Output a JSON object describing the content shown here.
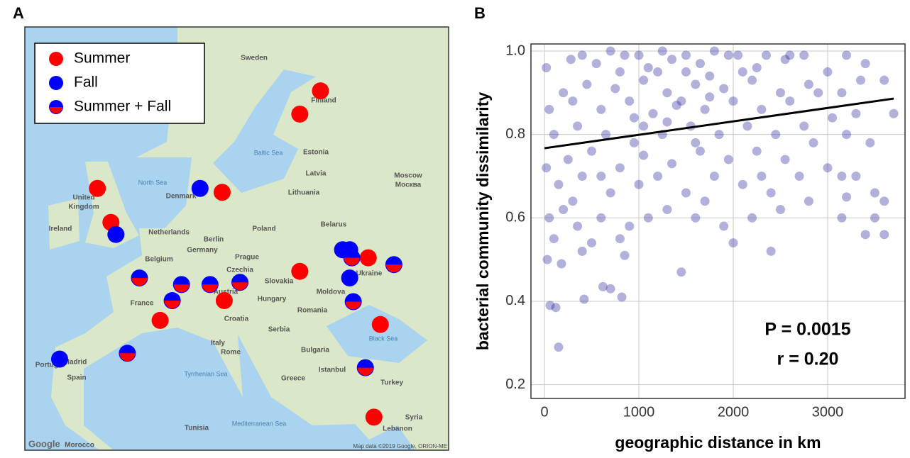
{
  "panel_labels": [
    "A",
    "B"
  ],
  "map": {
    "type": "map",
    "legend": [
      "Summer",
      "Fall",
      "Summer + Fall"
    ],
    "series": [
      {
        "name": "Summer",
        "color": "#ff0000",
        "lat": [
          62.5,
          61.0,
          55.4,
          55.7,
          53.0,
          50.0,
          48.8,
          46.1,
          44.2,
          43.8,
          34.0
        ],
        "lon": [
          27.7,
          24.8,
          13.9,
          -3.6,
          -1.7,
          34.4,
          24.8,
          14.2,
          5.2,
          36.1,
          35.2
        ]
      },
      {
        "name": "Fall",
        "color": "#0000ff",
        "lat": [
          55.7,
          52.0,
          50.7,
          50.7,
          48.2,
          40.3
        ],
        "lon": [
          10.8,
          -1.0,
          30.8,
          31.8,
          31.8,
          -8.9
        ]
      },
      {
        "name": "Summer + Fall",
        "color": "#0000ff",
        "color2": "#ff0000",
        "lat": [
          50.0,
          49.4,
          48.2,
          47.6,
          47.6,
          47.8,
          46.1,
          46.0,
          40.9,
          39.4
        ],
        "lon": [
          32.1,
          38.0,
          2.3,
          8.2,
          12.2,
          16.4,
          6.9,
          32.3,
          0.6,
          34.0
        ]
      }
    ],
    "labels": [
      "Sweden",
      "Finland",
      "Estonia",
      "Latvia",
      "Lithuania",
      "Moscow",
      "Москва",
      "North Sea",
      "Baltic Sea",
      "Denmark",
      "United",
      "Kingdom",
      "Ireland",
      "Netherlands",
      "Berlin",
      "Poland",
      "Belarus",
      "Germany",
      "Belgium",
      "Prague",
      "Czechia",
      "Slovakia",
      "Austria",
      "Hungary",
      "Moldova",
      "Ukraine",
      "France",
      "Romania",
      "Croatia",
      "Serbia",
      "Black Sea",
      "Italy",
      "Bulgaria",
      "Rome",
      "Madrid",
      "Spain",
      "Portugal",
      "Tyrrhenian Sea",
      "Greece",
      "Istanbul",
      "Turkey",
      "Mediterranean Sea",
      "Tunisia",
      "Syria",
      "Lebanon",
      "Morocco",
      "Google",
      "Map data ©2019 Google, ORION-ME"
    ]
  },
  "chart_data": {
    "type": "scatter",
    "xlabel": "geographic distance in km",
    "ylabel": "bacterial community dissimilarity",
    "xlim": [
      -143,
      3820
    ],
    "ylim": [
      0.167,
      1.017
    ],
    "xticks": [
      0,
      1000,
      2000,
      3000
    ],
    "yticks": [
      0.2,
      0.4,
      0.6,
      0.8,
      {
        "value": 1,
        "label": "1.0"
      }
    ],
    "grid": true,
    "series": [
      {
        "color": "#1f1f9c",
        "x": [
          150,
          60,
          120,
          180,
          420,
          620,
          700,
          820,
          850,
          1450,
          30,
          100,
          400,
          500,
          800,
          2000,
          2400,
          3400,
          3600,
          3150,
          3500,
          50,
          200,
          350,
          600,
          900,
          1100,
          1300,
          1600,
          1900,
          2200,
          2500,
          2800,
          3200,
          3300,
          3500,
          3600,
          150,
          400,
          700,
          1000,
          1200,
          1500,
          1800,
          2100,
          2400,
          2700,
          3000,
          3150,
          20,
          250,
          500,
          800,
          1050,
          1350,
          1650,
          1950,
          2250,
          2550,
          2850,
          3200,
          3450,
          100,
          350,
          650,
          950,
          1250,
          1550,
          1850,
          2150,
          2450,
          2750,
          3050,
          3300,
          3700,
          50,
          300,
          600,
          900,
          1150,
          1400,
          1700,
          2000,
          2300,
          2600,
          2900,
          3150,
          3350,
          3600,
          200,
          450,
          750,
          1050,
          1300,
          1600,
          1900,
          2200,
          2500,
          2800,
          3000,
          20,
          280,
          550,
          850,
          1100,
          1350,
          1650,
          1950,
          2250,
          2550,
          2750,
          3200,
          3400,
          400,
          700,
          1000,
          1250,
          1500,
          1800,
          2050,
          2350,
          2600,
          1200,
          1500,
          1750,
          1450,
          1750,
          1300,
          1600,
          1050,
          2100,
          800,
          950,
          1700,
          2300,
          600,
          300
        ],
        "values": [
          0.29,
          0.39,
          0.385,
          0.49,
          0.405,
          0.435,
          0.43,
          0.41,
          0.51,
          0.47,
          0.5,
          0.55,
          0.52,
          0.54,
          0.55,
          0.54,
          0.52,
          0.56,
          0.56,
          0.6,
          0.6,
          0.6,
          0.62,
          0.58,
          0.6,
          0.58,
          0.6,
          0.62,
          0.6,
          0.58,
          0.6,
          0.62,
          0.64,
          0.65,
          0.7,
          0.66,
          0.64,
          0.68,
          0.7,
          0.66,
          0.68,
          0.7,
          0.66,
          0.7,
          0.68,
          0.66,
          0.7,
          0.72,
          0.7,
          0.72,
          0.74,
          0.76,
          0.72,
          0.75,
          0.73,
          0.76,
          0.74,
          0.76,
          0.74,
          0.78,
          0.8,
          0.78,
          0.8,
          0.82,
          0.8,
          0.78,
          0.8,
          0.82,
          0.8,
          0.82,
          0.8,
          0.82,
          0.84,
          0.85,
          0.85,
          0.86,
          0.88,
          0.86,
          0.88,
          0.85,
          0.87,
          0.86,
          0.88,
          0.86,
          0.88,
          0.9,
          0.9,
          0.93,
          0.93,
          0.9,
          0.92,
          0.91,
          0.93,
          0.9,
          0.92,
          0.91,
          0.93,
          0.9,
          0.92,
          0.95,
          0.96,
          0.98,
          0.97,
          0.99,
          0.96,
          0.98,
          0.97,
          0.99,
          0.96,
          0.98,
          0.99,
          0.99,
          0.97,
          0.99,
          1,
          0.99,
          1,
          0.99,
          1,
          0.99,
          0.99,
          0.99,
          0.95,
          0.95,
          0.94,
          0.88,
          0.89,
          0.83,
          0.78,
          0.82,
          0.95,
          0.95,
          0.84,
          0.64,
          0.7,
          0.7,
          0.64
        ]
      }
    ],
    "fit": {
      "x": [
        0,
        3700
      ],
      "values": [
        0.767,
        0.886
      ]
    },
    "annotations": [
      "P = 0.0015",
      "r = 0.20"
    ]
  }
}
